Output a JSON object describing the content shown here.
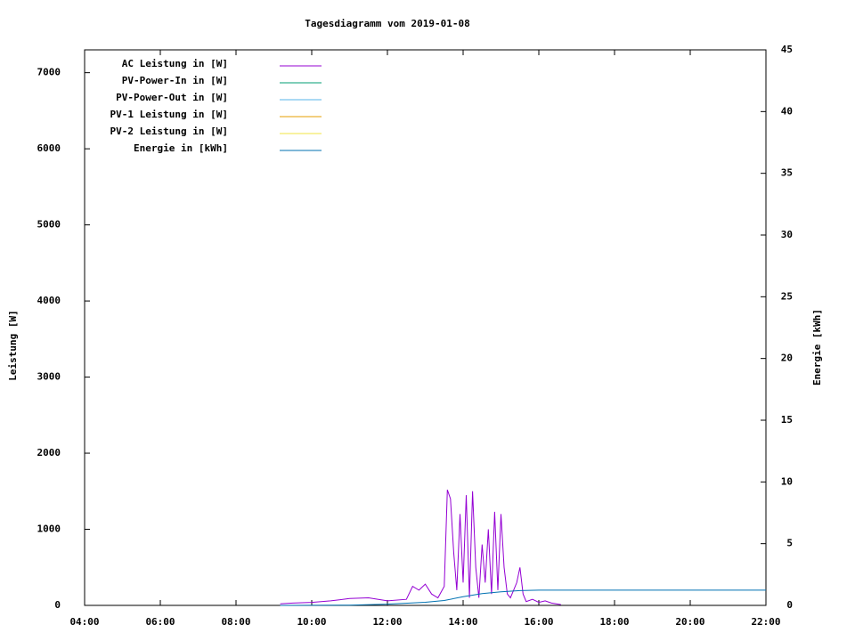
{
  "chart_data": {
    "type": "line",
    "title": "Tagesdiagramm vom 2019-01-08",
    "ylabel": "Leistung [W]",
    "y2label": "Energie [kWh]",
    "xlim": [
      "04:00",
      "22:00"
    ],
    "xticks": [
      "04:00",
      "06:00",
      "08:00",
      "10:00",
      "12:00",
      "14:00",
      "16:00",
      "18:00",
      "20:00",
      "22:00"
    ],
    "ylim": [
      0,
      7300
    ],
    "yticks": [
      0,
      1000,
      2000,
      3000,
      4000,
      5000,
      6000,
      7000
    ],
    "y2lim": [
      0,
      45
    ],
    "y2ticks": [
      0,
      5,
      10,
      15,
      20,
      25,
      30,
      35,
      40,
      45
    ],
    "legend": "top-left",
    "series": [
      {
        "name": "AC Leistung in [W]",
        "color": "#9400d3",
        "x": [
          "09:10",
          "09:30",
          "10:00",
          "10:30",
          "11:00",
          "11:30",
          "12:00",
          "12:30",
          "12:40",
          "12:50",
          "13:00",
          "13:10",
          "13:20",
          "13:30",
          "13:35",
          "13:40",
          "13:45",
          "13:50",
          "13:55",
          "14:00",
          "14:05",
          "14:10",
          "14:15",
          "14:20",
          "14:25",
          "14:30",
          "14:35",
          "14:40",
          "14:45",
          "14:50",
          "14:55",
          "15:00",
          "15:05",
          "15:10",
          "15:15",
          "15:20",
          "15:25",
          "15:30",
          "15:35",
          "15:40",
          "15:50",
          "16:00",
          "16:10",
          "16:20",
          "16:35"
        ],
        "values": [
          20,
          30,
          40,
          60,
          90,
          100,
          60,
          80,
          250,
          200,
          280,
          150,
          100,
          250,
          1520,
          1400,
          700,
          200,
          1200,
          300,
          1450,
          100,
          1500,
          500,
          100,
          800,
          300,
          1000,
          150,
          1230,
          200,
          1200,
          500,
          150,
          100,
          200,
          300,
          500,
          150,
          50,
          80,
          40,
          60,
          30,
          10
        ]
      },
      {
        "name": "PV-Power-In in [W]",
        "color": "#009e73"
      },
      {
        "name": "PV-Power-Out in [W]",
        "color": "#56b4e9"
      },
      {
        "name": "PV-1 Leistung in [W]",
        "color": "#e69f00"
      },
      {
        "name": "PV-2 Leistung in [W]",
        "color": "#f0e442"
      },
      {
        "name": "Energie in [kWh]",
        "color": "#0072b2",
        "axis": "y2",
        "x": [
          "09:10",
          "11:00",
          "12:00",
          "13:00",
          "13:30",
          "14:00",
          "14:30",
          "15:00",
          "15:30",
          "16:00",
          "22:00"
        ],
        "values": [
          0,
          0.02,
          0.1,
          0.25,
          0.4,
          0.7,
          0.95,
          1.1,
          1.2,
          1.23,
          1.23
        ]
      }
    ]
  }
}
